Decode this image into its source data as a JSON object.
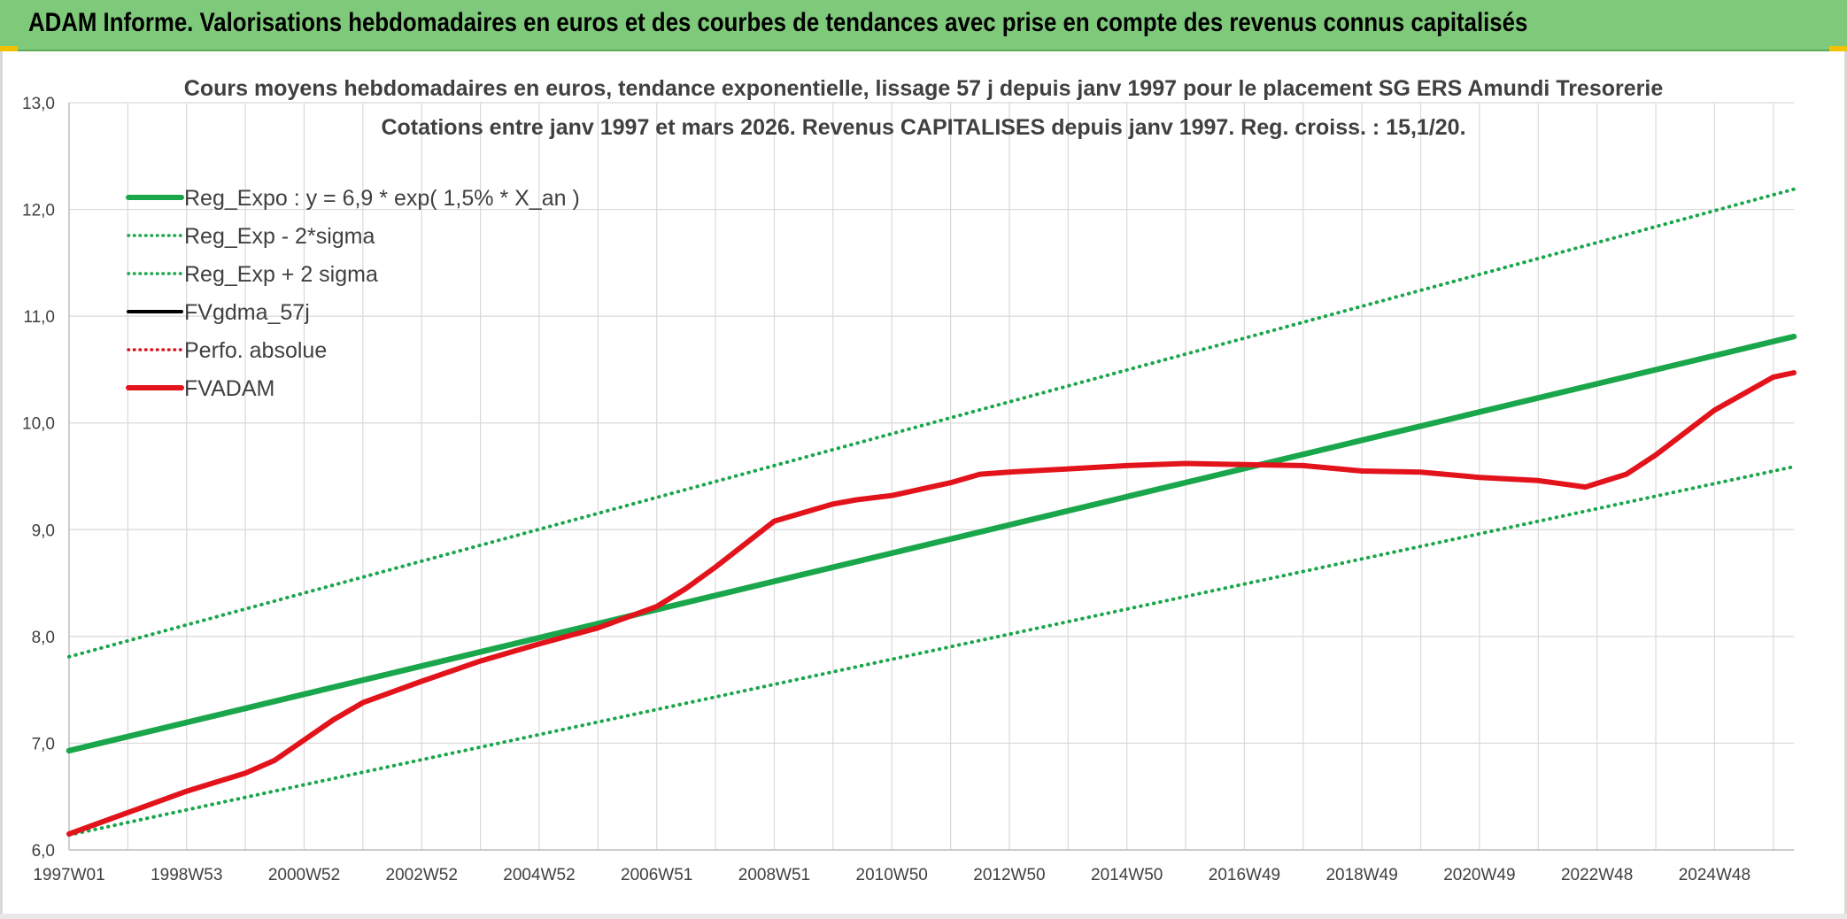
{
  "banner": {
    "title": "ADAM Informe. Valorisations hebdomadaires en euros et des courbes de tendances avec prise en compte des revenus connus capitalisés"
  },
  "chart_data": {
    "type": "line",
    "title": "Cours moyens hebdomadaires en euros, tendance exponentielle, lissage 57 j depuis janv 1997 pour le placement SG ERS Amundi Tresorerie",
    "subtitle": "Cotations entre janv 1997 et mars 2026. Revenus CAPITALISES depuis janv 1997. Reg. croiss. : 15,1/20.",
    "xlabel": "",
    "ylabel": "",
    "ylim": [
      6.0,
      13.0
    ],
    "xlim": [
      1997.0,
      2026.35
    ],
    "grid": true,
    "legend_position": "top-left",
    "y_ticks": [
      "6,0",
      "7,0",
      "8,0",
      "9,0",
      "10,0",
      "11,0",
      "12,0",
      "13,0"
    ],
    "x_ticks": [
      {
        "label": "1997W01",
        "x": 1997.0
      },
      {
        "label": "1998W53",
        "x": 1999.0
      },
      {
        "label": "2000W52",
        "x": 2001.0
      },
      {
        "label": "2002W52",
        "x": 2003.0
      },
      {
        "label": "2004W52",
        "x": 2005.0
      },
      {
        "label": "2006W51",
        "x": 2007.0
      },
      {
        "label": "2008W51",
        "x": 2009.0
      },
      {
        "label": "2010W50",
        "x": 2011.0
      },
      {
        "label": "2012W50",
        "x": 2013.0
      },
      {
        "label": "2014W50",
        "x": 2015.0
      },
      {
        "label": "2016W49",
        "x": 2017.0
      },
      {
        "label": "2018W49",
        "x": 2019.0
      },
      {
        "label": "2020W49",
        "x": 2021.0
      },
      {
        "label": "2022W48",
        "x": 2023.0
      },
      {
        "label": "2024W48",
        "x": 2025.0
      }
    ],
    "series": [
      {
        "name": "Reg_Expo : y = 6,9 * exp( 1,5% *  X_an )",
        "color": "#1aa64a",
        "style": "solid",
        "points": [
          [
            1997.0,
            6.93
          ],
          [
            2026.35,
            10.81
          ]
        ]
      },
      {
        "name": "Reg_Exp - 2*sigma",
        "color": "#1aa64a",
        "style": "dotted",
        "points": [
          [
            1997.0,
            6.14
          ],
          [
            2026.35,
            9.59
          ]
        ]
      },
      {
        "name": "Reg_Exp + 2 sigma",
        "color": "#1aa64a",
        "style": "dotted",
        "points": [
          [
            1997.0,
            7.81
          ],
          [
            2026.35,
            12.19
          ]
        ]
      },
      {
        "name": "FVgdma_57j",
        "color": "#000000",
        "style": "solid",
        "points": []
      },
      {
        "name": "Perfo. absolue",
        "color": "#d9131b",
        "style": "dotted",
        "points": []
      },
      {
        "name": "FVADAM",
        "color": "#e3131b",
        "style": "solid",
        "points": [
          [
            1997.0,
            6.15
          ],
          [
            1998.0,
            6.35
          ],
          [
            1999.0,
            6.55
          ],
          [
            2000.0,
            6.72
          ],
          [
            2000.5,
            6.84
          ],
          [
            2001.0,
            7.03
          ],
          [
            2001.5,
            7.22
          ],
          [
            2002.0,
            7.38
          ],
          [
            2003.0,
            7.58
          ],
          [
            2004.0,
            7.77
          ],
          [
            2005.0,
            7.93
          ],
          [
            2006.0,
            8.08
          ],
          [
            2007.0,
            8.28
          ],
          [
            2007.5,
            8.45
          ],
          [
            2008.0,
            8.65
          ],
          [
            2009.0,
            9.08
          ],
          [
            2010.0,
            9.24
          ],
          [
            2010.4,
            9.28
          ],
          [
            2011.0,
            9.32
          ],
          [
            2012.0,
            9.44
          ],
          [
            2012.5,
            9.52
          ],
          [
            2013.0,
            9.54
          ],
          [
            2014.0,
            9.57
          ],
          [
            2015.0,
            9.6
          ],
          [
            2016.0,
            9.62
          ],
          [
            2017.0,
            9.61
          ],
          [
            2018.0,
            9.6
          ],
          [
            2019.0,
            9.55
          ],
          [
            2020.0,
            9.54
          ],
          [
            2021.0,
            9.49
          ],
          [
            2022.0,
            9.46
          ],
          [
            2022.8,
            9.4
          ],
          [
            2023.5,
            9.52
          ],
          [
            2024.0,
            9.7
          ],
          [
            2025.0,
            10.12
          ],
          [
            2026.0,
            10.43
          ],
          [
            2026.35,
            10.47
          ]
        ]
      }
    ]
  }
}
